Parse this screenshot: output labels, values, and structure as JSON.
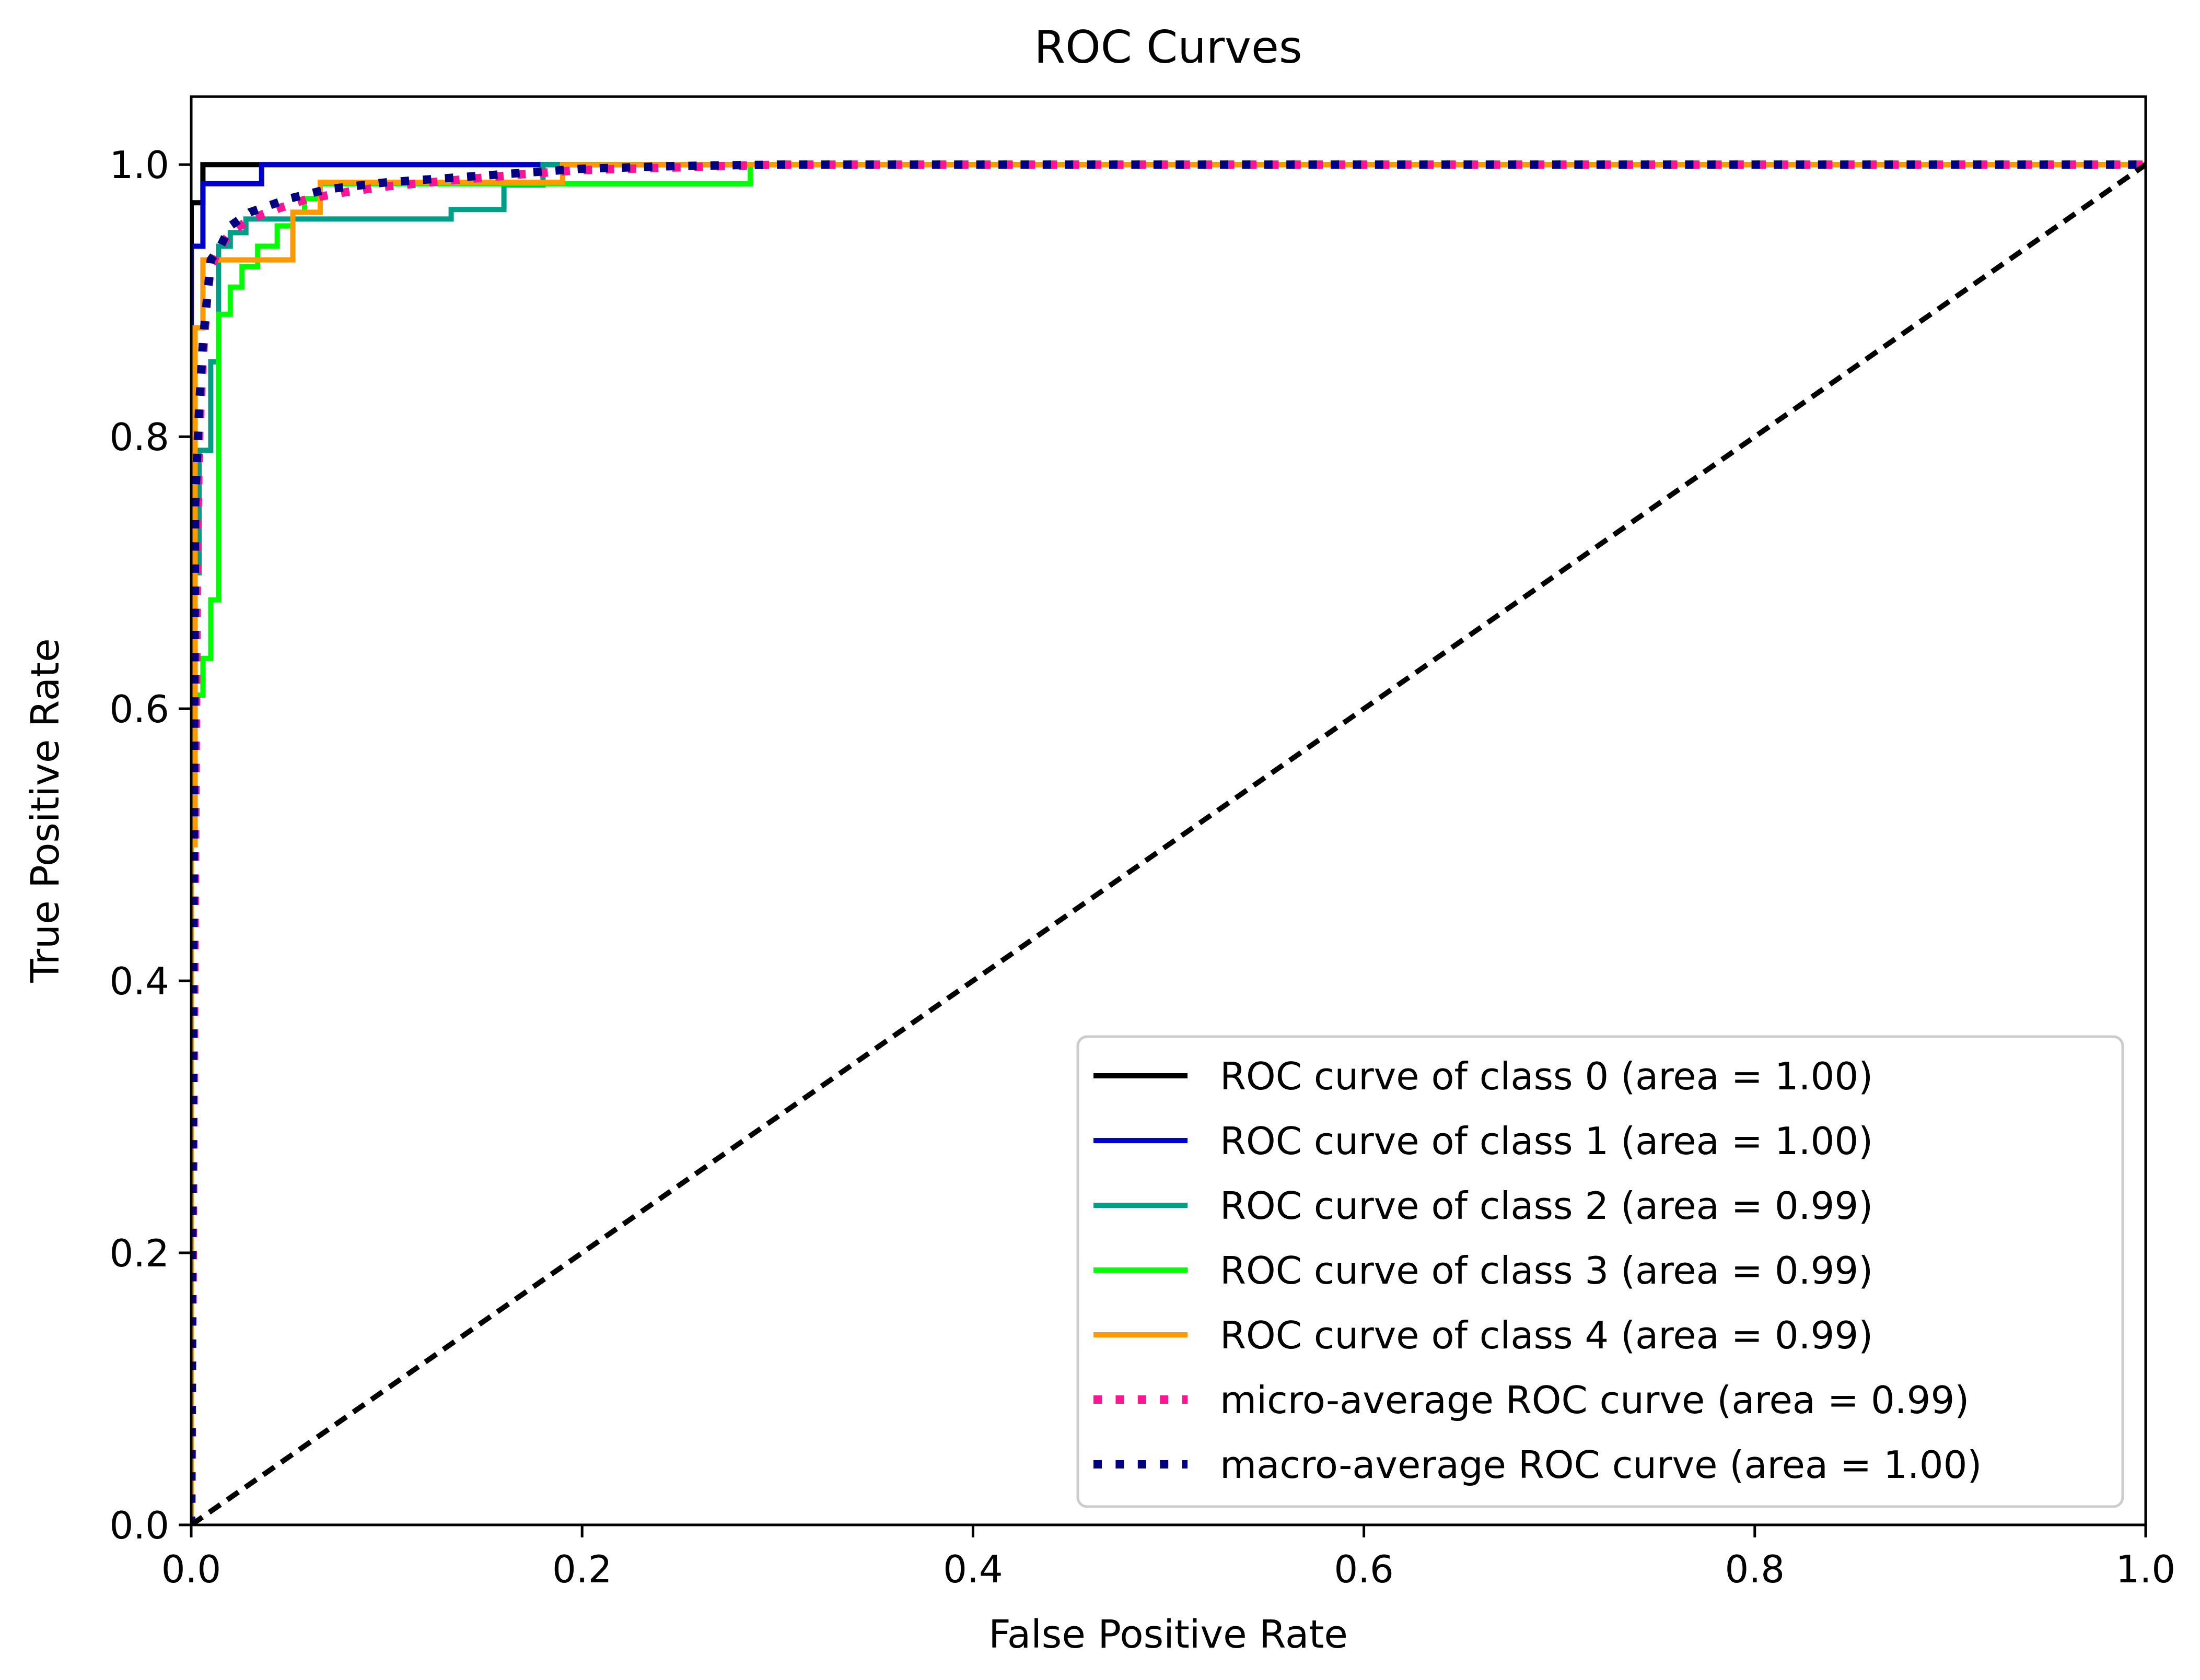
{
  "chart_data": {
    "type": "line",
    "title": "ROC Curves",
    "xlabel": "False Positive Rate",
    "ylabel": "True Positive Rate",
    "xlim": [
      0.0,
      1.0
    ],
    "ylim": [
      0.0,
      1.05
    ],
    "xticks": [
      "0.0",
      "0.2",
      "0.4",
      "0.6",
      "0.8",
      "1.0"
    ],
    "yticks": [
      "0.0",
      "0.2",
      "0.4",
      "0.6",
      "0.8",
      "1.0"
    ],
    "grid": false,
    "legend_position": "lower-right",
    "series": [
      {
        "name": "ROC curve of class 0 (area = 1.00)",
        "color": "#000000",
        "style": "solid",
        "x": [
          0.0,
          0.0,
          0.006,
          0.006,
          1.0
        ],
        "y": [
          0.0,
          0.972,
          0.972,
          1.0,
          1.0
        ]
      },
      {
        "name": "ROC curve of class 1 (area = 1.00)",
        "color": "#0000cc",
        "style": "solid",
        "x": [
          0.0,
          0.0,
          0.006,
          0.006,
          0.036,
          0.036,
          1.0
        ],
        "y": [
          0.0,
          0.94,
          0.94,
          0.986,
          0.986,
          1.0,
          1.0
        ]
      },
      {
        "name": "ROC curve of class 2 (area = 0.99)",
        "color": "#009e86",
        "style": "solid",
        "x": [
          0.0,
          0.0,
          0.004,
          0.004,
          0.01,
          0.01,
          0.014,
          0.014,
          0.02,
          0.02,
          0.028,
          0.028,
          0.133,
          0.133,
          0.16,
          0.16,
          0.18,
          0.18,
          1.0
        ],
        "y": [
          0.0,
          0.7,
          0.7,
          0.79,
          0.79,
          0.855,
          0.855,
          0.94,
          0.94,
          0.95,
          0.95,
          0.96,
          0.96,
          0.967,
          0.967,
          0.985,
          0.985,
          1.0,
          1.0
        ]
      },
      {
        "name": "ROC curve of class 3 (area = 0.99)",
        "color": "#00ff00",
        "style": "solid",
        "x": [
          0.0,
          0.0,
          0.006,
          0.006,
          0.01,
          0.01,
          0.014,
          0.014,
          0.02,
          0.02,
          0.026,
          0.026,
          0.034,
          0.034,
          0.044,
          0.044,
          0.052,
          0.052,
          0.058,
          0.058,
          0.066,
          0.066,
          0.286,
          0.286,
          1.0
        ],
        "y": [
          0.0,
          0.61,
          0.61,
          0.637,
          0.637,
          0.68,
          0.68,
          0.89,
          0.89,
          0.91,
          0.91,
          0.925,
          0.925,
          0.94,
          0.94,
          0.955,
          0.955,
          0.965,
          0.965,
          0.975,
          0.975,
          0.986,
          0.986,
          1.0,
          1.0
        ]
      },
      {
        "name": "ROC curve of class 4 (area = 0.99)",
        "color": "#ff9900",
        "style": "solid",
        "x": [
          0.0,
          0.0,
          0.002,
          0.002,
          0.006,
          0.006,
          0.018,
          0.018,
          0.052,
          0.052,
          0.066,
          0.066,
          0.19,
          0.19,
          1.0
        ],
        "y": [
          0.0,
          0.5,
          0.5,
          0.88,
          0.88,
          0.93,
          0.93,
          0.93,
          0.93,
          0.965,
          0.965,
          0.987,
          0.987,
          1.0,
          1.0
        ]
      },
      {
        "name": "micro-average ROC curve (area = 0.99)",
        "color": "#ff1493",
        "style": "dotted",
        "x": [
          0.0,
          0.002,
          0.003,
          0.004,
          0.006,
          0.008,
          0.01,
          0.015,
          0.02,
          0.03,
          0.045,
          0.06,
          0.08,
          0.1,
          0.13,
          0.17,
          0.2,
          0.3,
          1.0
        ],
        "y": [
          0.0,
          0.5,
          0.72,
          0.8,
          0.86,
          0.9,
          0.925,
          0.94,
          0.95,
          0.96,
          0.968,
          0.975,
          0.98,
          0.984,
          0.988,
          0.993,
          0.996,
          1.0,
          1.0
        ]
      },
      {
        "name": "macro-average ROC curve (area = 1.00)",
        "color": "#000080",
        "style": "dotted",
        "x": [
          0.0,
          0.002,
          0.004,
          0.006,
          0.008,
          0.01,
          0.015,
          0.02,
          0.03,
          0.05,
          0.07,
          0.1,
          0.13,
          0.16,
          0.2,
          0.25,
          0.3,
          1.0
        ],
        "y": [
          0.0,
          0.75,
          0.82,
          0.87,
          0.9,
          0.93,
          0.94,
          0.955,
          0.965,
          0.975,
          0.982,
          0.987,
          0.99,
          0.993,
          0.997,
          0.999,
          1.0,
          1.0
        ]
      }
    ],
    "reference_line": {
      "x": [
        0.0,
        1.0
      ],
      "y": [
        0.0,
        1.0
      ],
      "color": "#000000",
      "style": "dashed"
    }
  }
}
